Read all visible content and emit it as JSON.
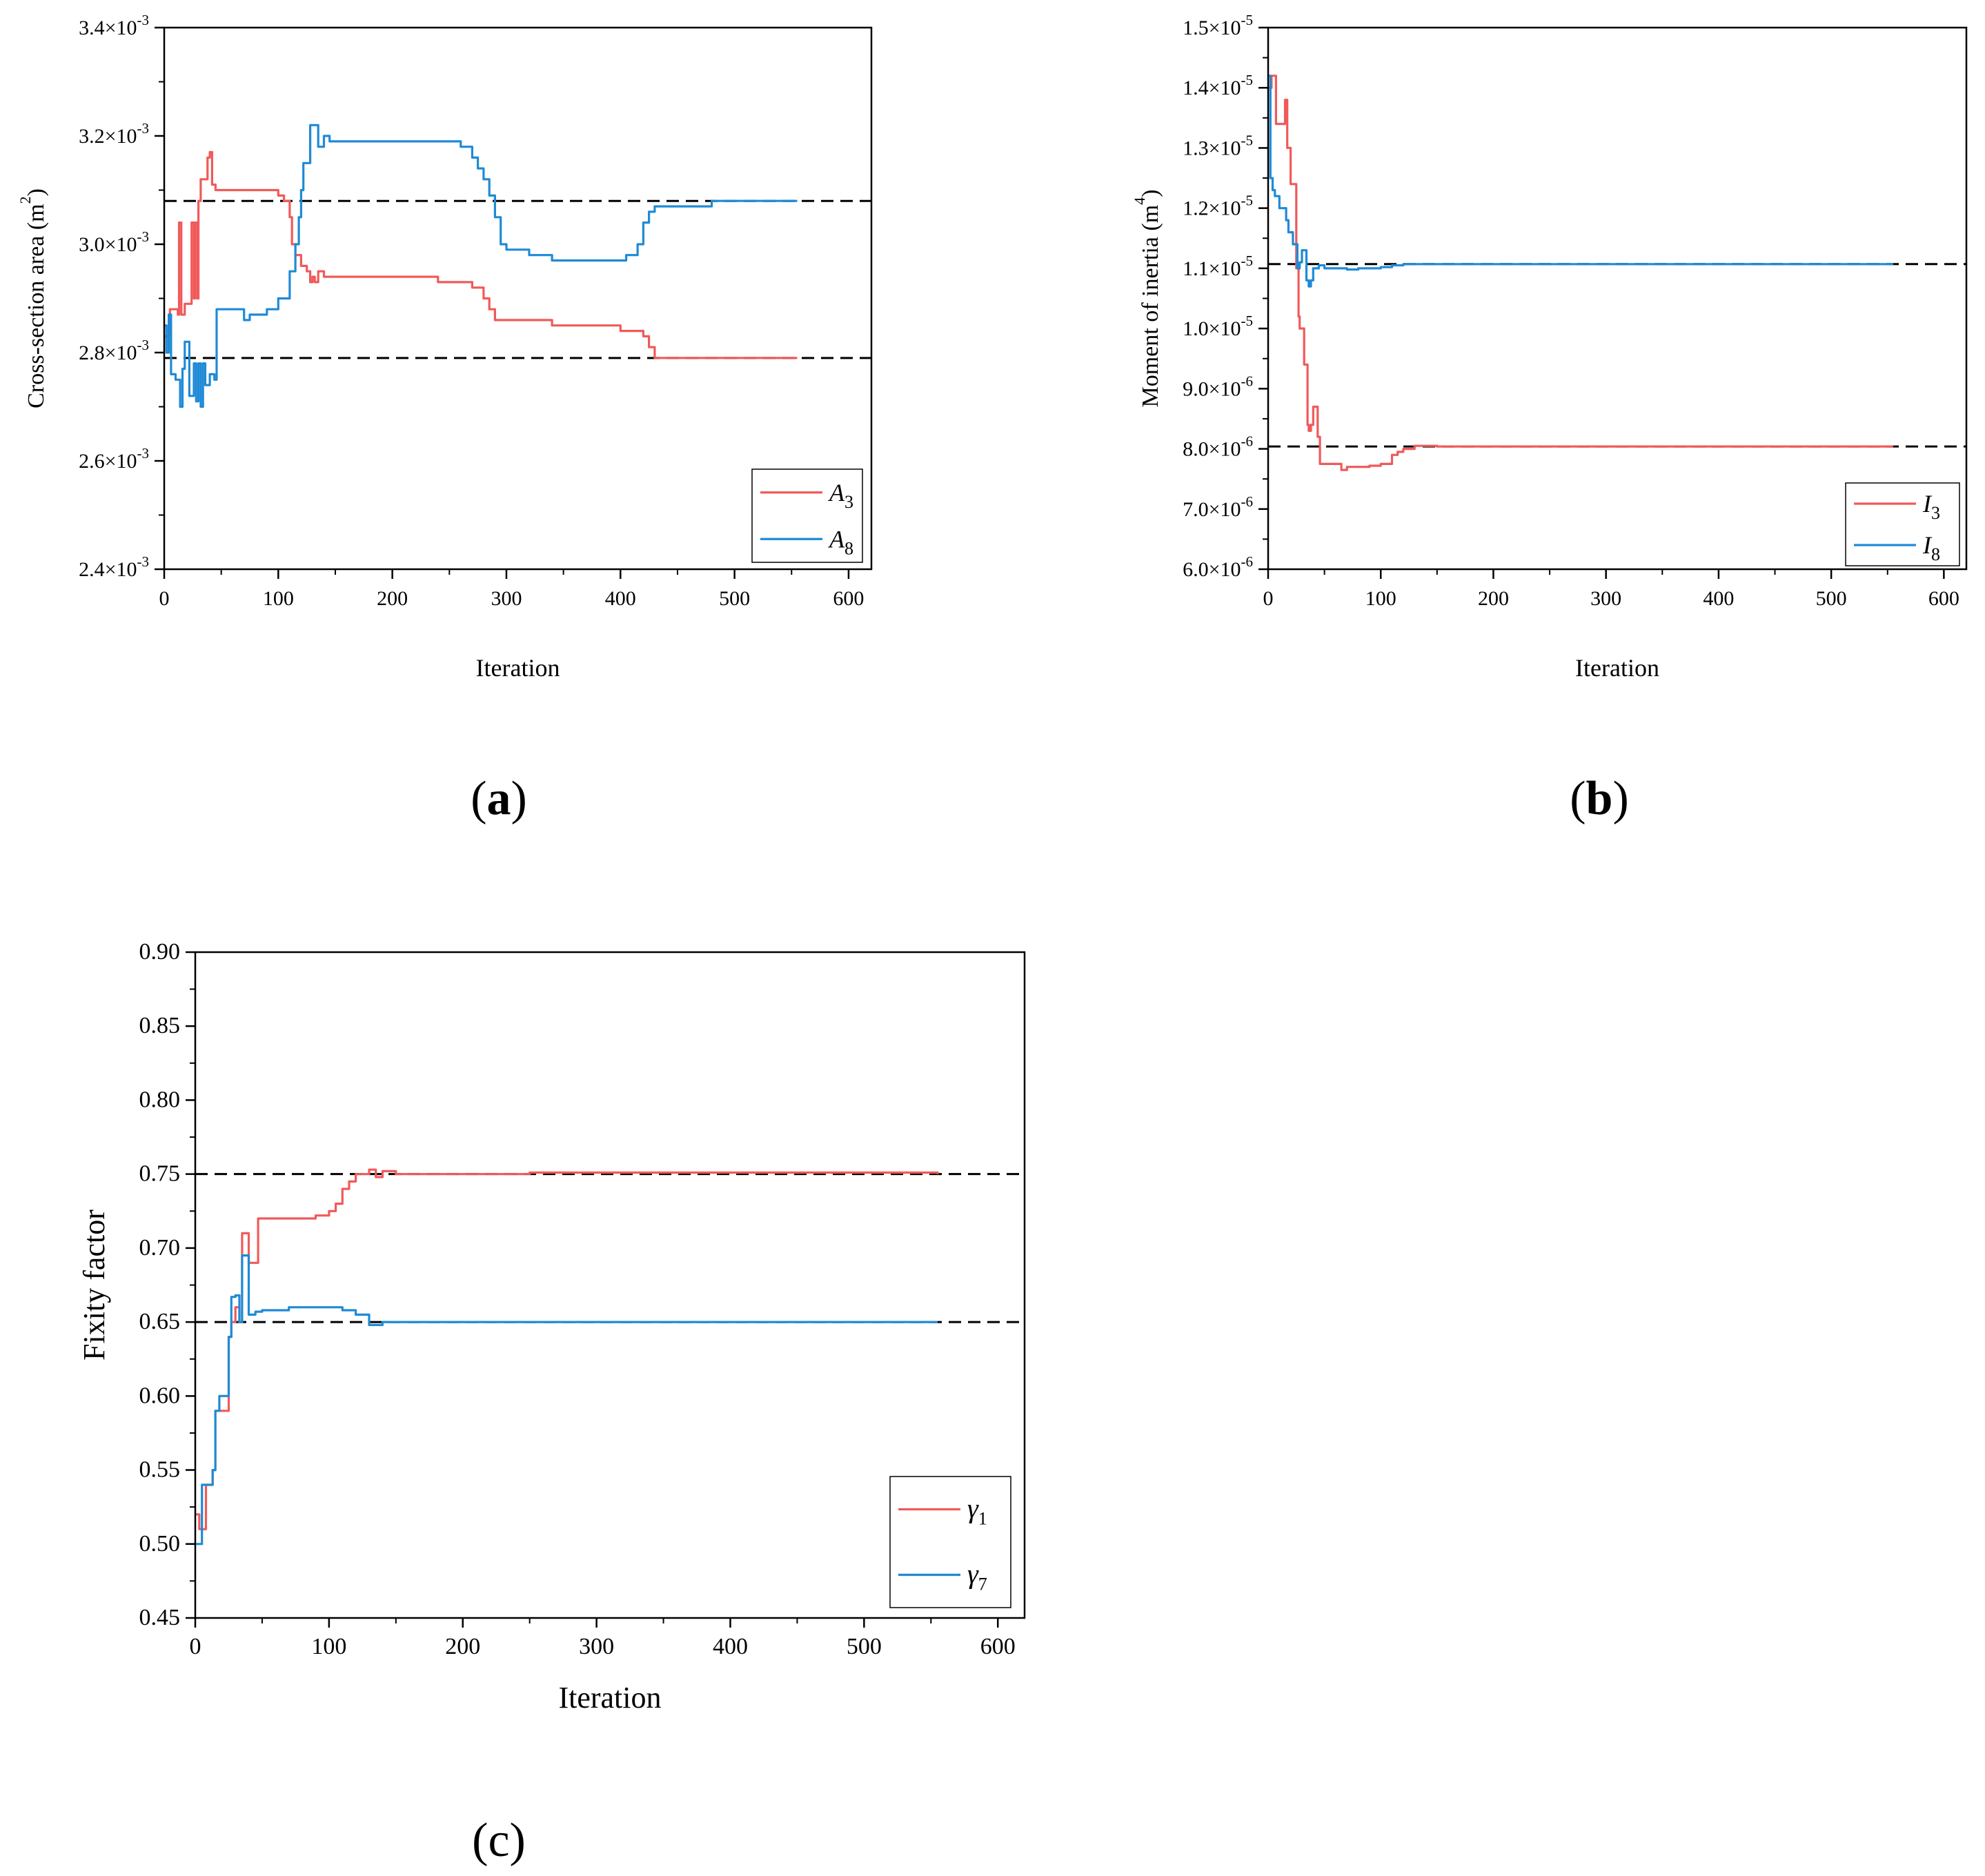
{
  "chart_data": [
    {
      "id": "a",
      "type": "line",
      "panel_label": "(a)",
      "panel_letter": "a",
      "xlabel": "Iteration",
      "ylabel": "Cross-section area (m²)",
      "ylabel_main": "Cross-section area (m",
      "ylabel_sup": "2",
      "ylabel_close": ")",
      "xlim": [
        0,
        620
      ],
      "ylim": [
        2.4,
        3.4
      ],
      "y_exponent": "-3",
      "x_ticks": [
        0,
        100,
        200,
        300,
        400,
        500,
        600
      ],
      "y_ticks": [
        2.4,
        2.6,
        2.8,
        3.0,
        3.2,
        3.4
      ],
      "y_tick_labels": [
        "2.4×10",
        "2.6×10",
        "2.8×10",
        "3.0×10",
        "3.2×10",
        "3.4×10"
      ],
      "reference_lines": [
        3.08,
        2.79
      ],
      "legend": {
        "position": "bottom-right",
        "entries": [
          {
            "base": "A",
            "sub": "3",
            "color": "#f05a5a"
          },
          {
            "base": "A",
            "sub": "8",
            "color": "#1f8ad6"
          }
        ]
      },
      "series": [
        {
          "name": "A3",
          "color": "#f05a5a",
          "x": [
            0,
            5,
            10,
            12,
            13,
            15,
            18,
            20,
            24,
            26,
            27,
            29,
            30,
            32,
            34,
            38,
            40,
            42,
            45,
            50,
            60,
            70,
            80,
            90,
            100,
            105,
            110,
            112,
            115,
            120,
            125,
            128,
            130,
            132,
            135,
            140,
            150,
            160,
            200,
            240,
            270,
            280,
            285,
            290,
            295,
            300,
            320,
            340,
            360,
            380,
            400,
            410,
            420,
            425,
            430,
            450,
            500,
            555
          ],
          "values": [
            2.83,
            2.88,
            2.88,
            2.87,
            3.04,
            2.87,
            2.89,
            2.89,
            3.04,
            2.9,
            3.04,
            2.9,
            3.08,
            3.12,
            3.12,
            3.16,
            3.17,
            3.11,
            3.1,
            3.1,
            3.1,
            3.1,
            3.1,
            3.1,
            3.09,
            3.08,
            3.05,
            3.0,
            2.98,
            2.96,
            2.95,
            2.93,
            2.94,
            2.93,
            2.95,
            2.94,
            2.94,
            2.94,
            2.94,
            2.93,
            2.92,
            2.9,
            2.88,
            2.86,
            2.86,
            2.86,
            2.86,
            2.85,
            2.85,
            2.85,
            2.84,
            2.84,
            2.83,
            2.81,
            2.79,
            2.79,
            2.79,
            2.79
          ]
        },
        {
          "name": "A8",
          "color": "#1f8ad6",
          "x": [
            0,
            2,
            4,
            6,
            10,
            14,
            16,
            18,
            22,
            26,
            28,
            30,
            32,
            34,
            36,
            40,
            44,
            46,
            50,
            60,
            70,
            75,
            80,
            90,
            100,
            110,
            115,
            118,
            120,
            122,
            125,
            128,
            130,
            135,
            140,
            145,
            150,
            160,
            200,
            240,
            260,
            270,
            275,
            280,
            285,
            290,
            295,
            300,
            310,
            320,
            330,
            340,
            360,
            380,
            400,
            405,
            410,
            415,
            420,
            425,
            430,
            440,
            460,
            480,
            500,
            555
          ],
          "values": [
            2.85,
            2.8,
            2.87,
            2.76,
            2.75,
            2.7,
            2.77,
            2.82,
            2.72,
            2.78,
            2.71,
            2.78,
            2.7,
            2.78,
            2.74,
            2.76,
            2.75,
            2.88,
            2.88,
            2.88,
            2.86,
            2.87,
            2.87,
            2.88,
            2.9,
            2.95,
            3.0,
            3.05,
            3.1,
            3.15,
            3.15,
            3.22,
            3.22,
            3.18,
            3.2,
            3.19,
            3.19,
            3.19,
            3.19,
            3.19,
            3.18,
            3.16,
            3.14,
            3.12,
            3.09,
            3.05,
            3.0,
            2.99,
            2.99,
            2.98,
            2.98,
            2.97,
            2.97,
            2.97,
            2.97,
            2.98,
            2.98,
            3.0,
            3.04,
            3.06,
            3.07,
            3.07,
            3.07,
            3.08,
            3.08,
            3.08
          ]
        }
      ]
    },
    {
      "id": "b",
      "type": "line",
      "panel_label": "(b)",
      "panel_letter": "b",
      "xlabel": "Iteration",
      "ylabel": "Moment of inertia (m⁴)",
      "ylabel_main": "Moment of inertia (m",
      "ylabel_sup": "4",
      "ylabel_close": ")",
      "xlim": [
        0,
        620
      ],
      "ylim": [
        6.0,
        15.0
      ],
      "x_ticks": [
        0,
        100,
        200,
        300,
        400,
        500,
        600
      ],
      "y_ticks": [
        6.0,
        7.0,
        8.0,
        9.0,
        10.0,
        11.0,
        12.0,
        13.0,
        14.0,
        15.0
      ],
      "y_tick_labels": [
        "6.0×10",
        "7.0×10",
        "8.0×10",
        "9.0×10",
        "1.0×10",
        "1.1×10",
        "1.2×10",
        "1.3×10",
        "1.4×10",
        "1.5×10"
      ],
      "y_tick_exponents": [
        "-6",
        "-6",
        "-6",
        "-6",
        "-5",
        "-5",
        "-5",
        "-5",
        "-5",
        "-5"
      ],
      "reference_lines": [
        11.07,
        8.04
      ],
      "legend": {
        "position": "bottom-right",
        "entries": [
          {
            "base": "I",
            "sub": "3",
            "color": "#f05a5a"
          },
          {
            "base": "I",
            "sub": "8",
            "color": "#1f8ad6"
          }
        ]
      },
      "series": [
        {
          "name": "I3",
          "color": "#f05a5a",
          "x": [
            0,
            3,
            5,
            7,
            10,
            15,
            17,
            20,
            22,
            25,
            27,
            28,
            30,
            32,
            35,
            36,
            38,
            40,
            42,
            44,
            46,
            50,
            60,
            65,
            70,
            75,
            80,
            90,
            100,
            110,
            115,
            120,
            130,
            150,
            300,
            555
          ],
          "values": [
            14.0,
            14.2,
            14.2,
            13.4,
            13.4,
            13.8,
            13.0,
            12.4,
            12.4,
            11.0,
            10.2,
            10.0,
            10.0,
            9.4,
            8.4,
            8.3,
            8.4,
            8.7,
            8.7,
            8.2,
            7.75,
            7.75,
            7.75,
            7.65,
            7.7,
            7.7,
            7.7,
            7.72,
            7.75,
            7.9,
            7.95,
            8.0,
            8.05,
            8.04,
            8.04,
            8.04
          ]
        },
        {
          "name": "I8",
          "color": "#1f8ad6",
          "x": [
            0,
            2,
            4,
            6,
            10,
            14,
            16,
            18,
            22,
            26,
            28,
            30,
            32,
            34,
            36,
            38,
            40,
            45,
            50,
            60,
            70,
            80,
            90,
            100,
            110,
            120,
            130,
            150,
            300,
            555
          ],
          "values": [
            14.2,
            12.5,
            12.3,
            12.2,
            12.0,
            12.0,
            11.8,
            11.6,
            11.4,
            11.0,
            11.1,
            11.3,
            11.3,
            10.8,
            10.7,
            10.8,
            11.0,
            11.05,
            11.0,
            11.0,
            10.98,
            11.0,
            11.0,
            11.02,
            11.05,
            11.07,
            11.07,
            11.07,
            11.07,
            11.07
          ]
        }
      ]
    },
    {
      "id": "c",
      "type": "line",
      "panel_label": "(c)",
      "panel_letter": "c",
      "xlabel": "Iteration",
      "ylabel": "Fixity factor",
      "xlim": [
        0,
        620
      ],
      "ylim": [
        0.45,
        0.9
      ],
      "x_ticks": [
        0,
        100,
        200,
        300,
        400,
        500,
        600
      ],
      "y_ticks": [
        0.45,
        0.5,
        0.55,
        0.6,
        0.65,
        0.7,
        0.75,
        0.8,
        0.85,
        0.9
      ],
      "y_tick_labels": [
        "0.45",
        "0.50",
        "0.55",
        "0.60",
        "0.65",
        "0.70",
        "0.75",
        "0.80",
        "0.85",
        "0.90"
      ],
      "reference_lines": [
        0.75,
        0.65
      ],
      "legend": {
        "position": "bottom-right",
        "entries": [
          {
            "base": "γ",
            "sub": "1",
            "color": "#f05a5a"
          },
          {
            "base": "γ",
            "sub": "7",
            "color": "#1f8ad6"
          }
        ]
      },
      "series": [
        {
          "name": "γ1",
          "color": "#f05a5a",
          "x": [
            0,
            3,
            5,
            8,
            10,
            13,
            15,
            18,
            20,
            25,
            27,
            30,
            33,
            35,
            38,
            40,
            45,
            47,
            50,
            70,
            90,
            100,
            105,
            110,
            115,
            120,
            125,
            130,
            135,
            140,
            150,
            250,
            555
          ],
          "values": [
            0.52,
            0.51,
            0.51,
            0.54,
            0.54,
            0.55,
            0.59,
            0.59,
            0.59,
            0.64,
            0.65,
            0.66,
            0.65,
            0.71,
            0.71,
            0.69,
            0.69,
            0.72,
            0.72,
            0.72,
            0.722,
            0.725,
            0.73,
            0.74,
            0.745,
            0.75,
            0.75,
            0.753,
            0.748,
            0.752,
            0.75,
            0.751,
            0.75
          ]
        },
        {
          "name": "γ7",
          "color": "#1f8ad6",
          "x": [
            0,
            3,
            5,
            8,
            10,
            13,
            15,
            18,
            20,
            25,
            27,
            30,
            33,
            35,
            38,
            40,
            45,
            50,
            70,
            90,
            110,
            120,
            130,
            140,
            555
          ],
          "values": [
            0.5,
            0.5,
            0.54,
            0.54,
            0.54,
            0.55,
            0.59,
            0.6,
            0.6,
            0.64,
            0.667,
            0.668,
            0.65,
            0.695,
            0.695,
            0.655,
            0.657,
            0.658,
            0.66,
            0.66,
            0.658,
            0.655,
            0.648,
            0.65,
            0.65
          ]
        }
      ]
    }
  ]
}
